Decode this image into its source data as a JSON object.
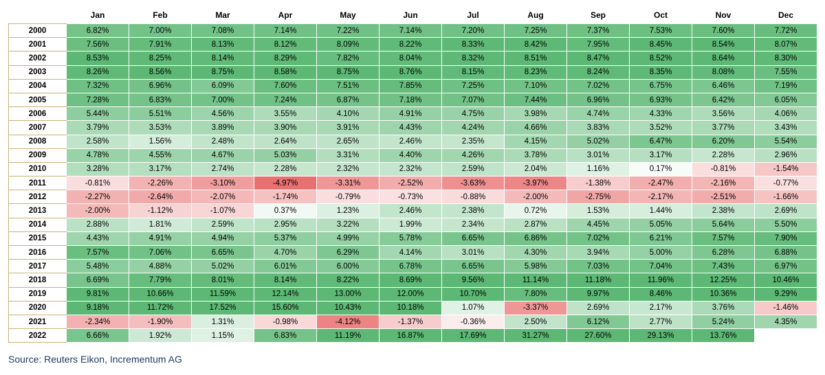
{
  "chart_data": {
    "type": "heatmap",
    "columns": [
      "Jan",
      "Feb",
      "Mar",
      "Apr",
      "May",
      "Jun",
      "Jul",
      "Aug",
      "Sep",
      "Oct",
      "Nov",
      "Dec"
    ],
    "rows": [
      {
        "year": "2000",
        "values": [
          6.82,
          7.0,
          7.08,
          7.14,
          7.22,
          7.14,
          7.2,
          7.25,
          7.37,
          7.53,
          7.6,
          7.72
        ]
      },
      {
        "year": "2001",
        "values": [
          7.56,
          7.91,
          8.13,
          8.12,
          8.09,
          8.22,
          8.33,
          8.42,
          7.95,
          8.45,
          8.54,
          8.07
        ]
      },
      {
        "year": "2002",
        "values": [
          8.53,
          8.25,
          8.14,
          8.29,
          7.82,
          8.04,
          8.32,
          8.51,
          8.47,
          8.52,
          8.64,
          8.3
        ]
      },
      {
        "year": "2003",
        "values": [
          8.26,
          8.56,
          8.75,
          8.58,
          8.75,
          8.76,
          8.15,
          8.23,
          8.24,
          8.35,
          8.08,
          7.55
        ]
      },
      {
        "year": "2004",
        "values": [
          7.32,
          6.96,
          6.09,
          7.6,
          7.51,
          7.85,
          7.25,
          7.1,
          7.02,
          6.75,
          6.46,
          7.19
        ]
      },
      {
        "year": "2005",
        "values": [
          7.28,
          6.83,
          7.0,
          7.24,
          6.87,
          7.18,
          7.07,
          7.44,
          6.96,
          6.93,
          6.42,
          6.05
        ]
      },
      {
        "year": "2006",
        "values": [
          5.44,
          5.51,
          4.56,
          3.55,
          4.1,
          4.91,
          4.75,
          3.98,
          4.74,
          4.33,
          3.56,
          4.06
        ]
      },
      {
        "year": "2007",
        "values": [
          3.79,
          3.53,
          3.89,
          3.9,
          3.91,
          4.43,
          4.24,
          4.66,
          3.83,
          3.52,
          3.77,
          3.43
        ]
      },
      {
        "year": "2008",
        "values": [
          2.58,
          1.56,
          2.48,
          2.64,
          2.65,
          2.46,
          2.35,
          4.15,
          5.02,
          6.47,
          6.2,
          5.54
        ]
      },
      {
        "year": "2009",
        "values": [
          4.78,
          4.55,
          4.67,
          5.03,
          3.31,
          4.4,
          4.26,
          3.78,
          3.01,
          3.17,
          2.28,
          2.96
        ]
      },
      {
        "year": "2010",
        "values": [
          3.28,
          3.17,
          2.74,
          2.28,
          2.32,
          2.32,
          2.59,
          2.04,
          1.16,
          0.17,
          -0.81,
          -1.54
        ]
      },
      {
        "year": "2011",
        "values": [
          -0.81,
          -2.26,
          -3.1,
          -4.97,
          -3.31,
          -2.52,
          -3.63,
          -3.97,
          -1.38,
          -2.47,
          -2.16,
          -0.77
        ]
      },
      {
        "year": "2012",
        "values": [
          -2.27,
          -2.64,
          -2.07,
          -1.74,
          -0.79,
          -0.73,
          -0.88,
          -2.0,
          -2.75,
          -2.17,
          -2.51,
          -1.66
        ]
      },
      {
        "year": "2013",
        "values": [
          -2.0,
          -1.12,
          -1.07,
          0.37,
          1.23,
          2.46,
          2.38,
          0.72,
          1.53,
          1.44,
          2.38,
          2.69
        ]
      },
      {
        "year": "2014",
        "values": [
          2.88,
          1.81,
          2.59,
          2.95,
          3.22,
          1.99,
          2.34,
          2.87,
          4.45,
          5.05,
          5.64,
          5.5
        ]
      },
      {
        "year": "2015",
        "values": [
          4.43,
          4.91,
          4.94,
          5.37,
          4.99,
          5.78,
          6.65,
          6.86,
          7.02,
          6.21,
          7.57,
          7.9
        ]
      },
      {
        "year": "2016",
        "values": [
          7.57,
          7.06,
          6.65,
          4.7,
          6.29,
          4.14,
          3.01,
          4.3,
          3.94,
          5.0,
          6.28,
          6.88
        ]
      },
      {
        "year": "2017",
        "values": [
          5.48,
          4.88,
          5.02,
          6.01,
          6.0,
          6.78,
          6.65,
          5.98,
          7.03,
          7.04,
          7.43,
          6.97
        ]
      },
      {
        "year": "2018",
        "values": [
          6.69,
          7.79,
          8.01,
          8.14,
          8.22,
          8.69,
          9.56,
          11.14,
          11.18,
          11.96,
          12.25,
          10.46
        ]
      },
      {
        "year": "2019",
        "values": [
          9.81,
          10.66,
          11.59,
          12.14,
          13.0,
          12.0,
          10.7,
          7.8,
          9.97,
          8.46,
          10.36,
          9.29
        ]
      },
      {
        "year": "2020",
        "values": [
          9.18,
          11.72,
          17.52,
          15.6,
          10.43,
          10.18,
          1.07,
          -3.37,
          2.69,
          2.17,
          3.76,
          -1.46
        ]
      },
      {
        "year": "2021",
        "values": [
          -2.34,
          -1.9,
          1.31,
          -0.98,
          -4.12,
          -1.37,
          -0.36,
          2.5,
          6.12,
          2.77,
          5.24,
          4.35
        ]
      },
      {
        "year": "2022",
        "values": [
          6.66,
          1.92,
          1.15,
          6.83,
          11.19,
          16.87,
          17.69,
          31.27,
          27.6,
          29.13,
          13.76,
          null
        ]
      }
    ],
    "value_suffix": "%",
    "colors": {
      "positive": "#5cb874",
      "negative": "#e96f6f",
      "neutral": "#ffffff",
      "row_label_border": "#c9b27a",
      "source_text": "#233a66"
    }
  },
  "source": "Source: Reuters Eikon, Incrementum AG"
}
